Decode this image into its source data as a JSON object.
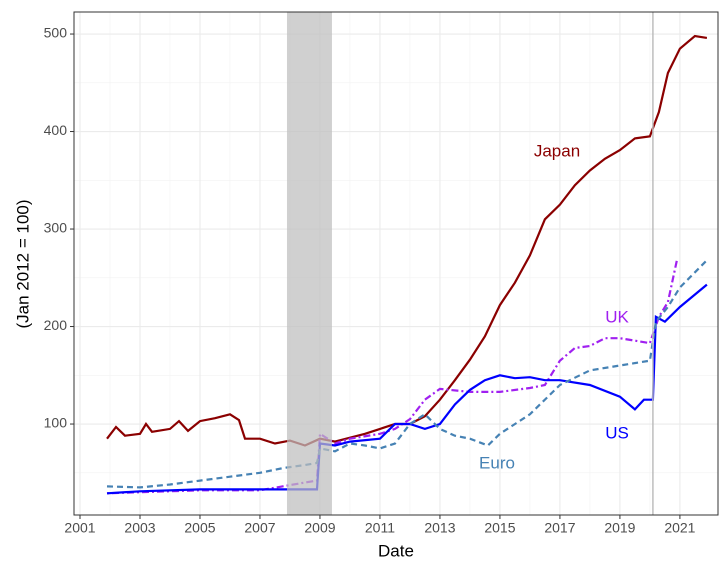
{
  "chart_data": {
    "type": "line",
    "x_label": "Date",
    "y_label": "(Jan 2012 = 100)",
    "xlim": [
      2000.8,
      2022.27
    ],
    "ylim": [
      6.7,
      522.6
    ],
    "xticks": [
      2001,
      2003,
      2005,
      2007,
      2009,
      2011,
      2013,
      2015,
      2017,
      2019,
      2021
    ],
    "yticks": [
      100,
      200,
      300,
      400,
      500
    ],
    "grid": true,
    "shaded_regions": [
      [
        2007.9,
        2009.4
      ]
    ],
    "vlines": [
      2020.1
    ],
    "series": [
      {
        "name": "Japan",
        "color": "#8b0000",
        "dash": "solid",
        "x": [
          2001.9,
          2002.2,
          2002.5,
          2003,
          2003.2,
          2003.4,
          2004,
          2004.3,
          2004.6,
          2005,
          2005.5,
          2006,
          2006.3,
          2006.5,
          2007,
          2007.5,
          2008,
          2008.5,
          2009,
          2009.5,
          2010,
          2010.5,
          2011,
          2011.5,
          2012,
          2012.5,
          2013,
          2013.5,
          2014,
          2014.5,
          2015,
          2015.5,
          2016,
          2016.5,
          2017,
          2017.5,
          2018,
          2018.5,
          2019,
          2019.5,
          2020,
          2020.3,
          2020.6,
          2021,
          2021.5,
          2021.9
        ],
        "values": [
          85,
          97,
          88,
          90,
          100,
          92,
          95,
          103,
          93,
          103,
          106,
          110,
          104,
          85,
          85,
          80,
          83,
          78,
          85,
          82,
          86,
          90,
          95,
          100,
          100,
          108,
          125,
          145,
          166,
          190,
          222,
          245,
          273,
          310,
          325,
          345,
          360,
          372,
          381,
          393,
          395,
          420,
          460,
          485,
          498,
          496
        ]
      },
      {
        "name": "UK",
        "color": "#a020f0",
        "dash": "dotdash",
        "x": [
          2001.9,
          2005,
          2007,
          2008.5,
          2008.9,
          2009,
          2009.5,
          2010,
          2011,
          2011.5,
          2012,
          2012.5,
          2013,
          2014,
          2015,
          2016,
          2016.5,
          2017,
          2017.5,
          2018,
          2018.5,
          2019,
          2020,
          2020.3,
          2020.6,
          2020.9
        ],
        "values": [
          29,
          32,
          32,
          40,
          42,
          90,
          80,
          85,
          90,
          95,
          105,
          125,
          136,
          133,
          133,
          137,
          140,
          165,
          178,
          180,
          188,
          188,
          183,
          210,
          225,
          268
        ]
      },
      {
        "name": "US",
        "color": "#0000ff",
        "dash": "solid",
        "x": [
          2001.9,
          2003,
          2005,
          2007,
          2008.5,
          2008.9,
          2009,
          2009.5,
          2010,
          2011,
          2011.5,
          2012,
          2012.5,
          2013,
          2013.5,
          2014,
          2014.5,
          2015,
          2015.5,
          2016,
          2016.5,
          2017,
          2018,
          2019,
          2019.5,
          2019.8,
          2020.1,
          2020.2,
          2020.5,
          2021,
          2021.9
        ],
        "values": [
          29,
          31,
          33,
          33,
          33,
          33,
          80,
          78,
          82,
          85,
          100,
          100,
          95,
          100,
          120,
          135,
          145,
          150,
          147,
          148,
          145,
          145,
          140,
          128,
          115,
          125,
          125,
          210,
          205,
          220,
          243
        ]
      },
      {
        "name": "Euro",
        "color": "#4682b4",
        "dash": "dashed",
        "x": [
          2001.9,
          2003,
          2004,
          2005,
          2006,
          2007,
          2007.8,
          2008.5,
          2008.9,
          2009,
          2009.5,
          2010,
          2010.5,
          2011,
          2011.5,
          2012,
          2012.5,
          2013,
          2013.5,
          2014,
          2014.6,
          2015,
          2016,
          2017,
          2018,
          2019,
          2020,
          2020.2,
          2020.6,
          2021,
          2021.9
        ],
        "values": [
          36,
          35,
          38,
          42,
          46,
          50,
          55,
          58,
          60,
          75,
          72,
          80,
          78,
          75,
          80,
          100,
          110,
          95,
          88,
          85,
          78,
          90,
          110,
          140,
          155,
          160,
          165,
          205,
          220,
          240,
          268
        ]
      }
    ]
  }
}
